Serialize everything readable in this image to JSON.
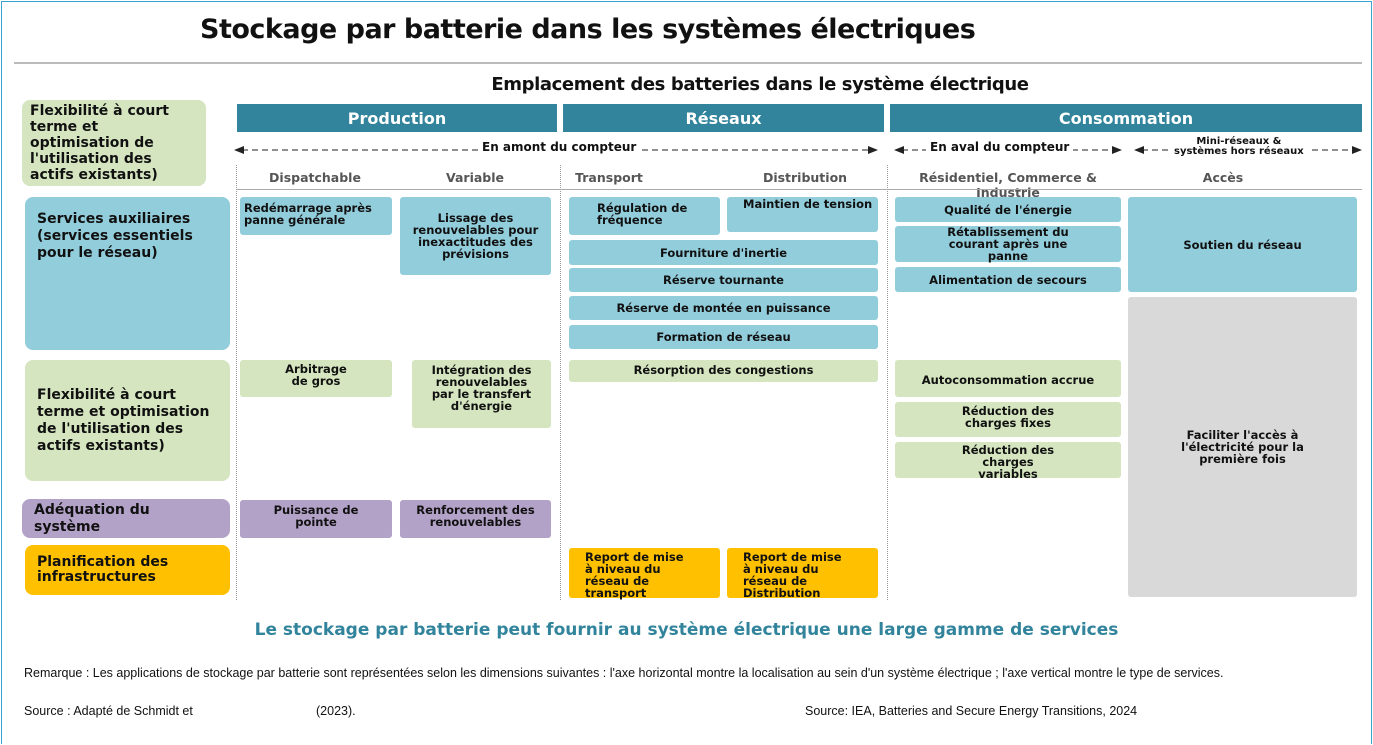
{
  "title": "Stockage par batterie dans les systèmes électriques",
  "subtitle": "Emplacement des batteries dans le système électrique",
  "corner_label": "Flexibilité à court terme et optimisation de l'utilisation des actifs existants)",
  "columns": [
    {
      "header": "Production",
      "subheaders": [
        "Dispatchable",
        "Variable"
      ]
    },
    {
      "header": "Réseaux",
      "subheaders": [
        "Transport",
        "Distribution"
      ]
    },
    {
      "header": "Consommation",
      "subheaders": [
        "Résidentiel, Commerce & Industrie",
        "Accès"
      ]
    }
  ],
  "meter": {
    "upstream": "En amont du compteur",
    "downstream": "En aval du compteur",
    "offgrid": "Mini-réseaux &\nsystèmes hors réseaux"
  },
  "rows": [
    {
      "label": "Services auxiliaires (services essentiels pour le réseau)",
      "cells": [
        "Redémarrage après panne générale",
        "Lissage des renouvelables pour inexactitudes des prévisions",
        "Régulation de fréquence",
        "Maintien de tension",
        "Fourniture d'inertie",
        "Réserve tournante",
        "Réserve de montée en puissance",
        "Formation de réseau",
        "Qualité de l'énergie",
        "Rétablissement du courant après une panne",
        "Alimentation de secours",
        "Soutien du réseau"
      ]
    },
    {
      "label": "Flexibilité à court terme et optimisation de l'utilisation des actifs existants)",
      "cells": [
        "Arbitrage de gros",
        "Intégration des renouvelables par le transfert d'énergie",
        "Résorption des congestions",
        "Autoconsommation accrue",
        "Réduction des charges fixes",
        "Réduction des charges variables"
      ]
    },
    {
      "label": "Adéquation du système",
      "cells": [
        "Puissance de pointe",
        "Renforcement des renouvelables"
      ]
    },
    {
      "label": "Planification des infrastructures",
      "cells": [
        "Report de mise à niveau du réseau de transport",
        "Report de mise à niveau du réseau de Distribution"
      ]
    }
  ],
  "spanning_cell": "Faciliter l'accès à l'électricité pour la première fois",
  "footer": {
    "headline": "Le stockage par batterie peut fournir au  système électrique une large gamme de services",
    "note": "Remarque : Les applications de stockage par batterie sont représentées selon les dimensions suivantes : l'axe horizontal montre la localisation au sein d'un système électrique ; l'axe vertical montre le type de services.",
    "source_left": "Source : Adapté de Schmidt et",
    "source_year": "(2023).",
    "source_right": "Source: IEA, Batteries and Secure Energy Transitions, 2024"
  }
}
